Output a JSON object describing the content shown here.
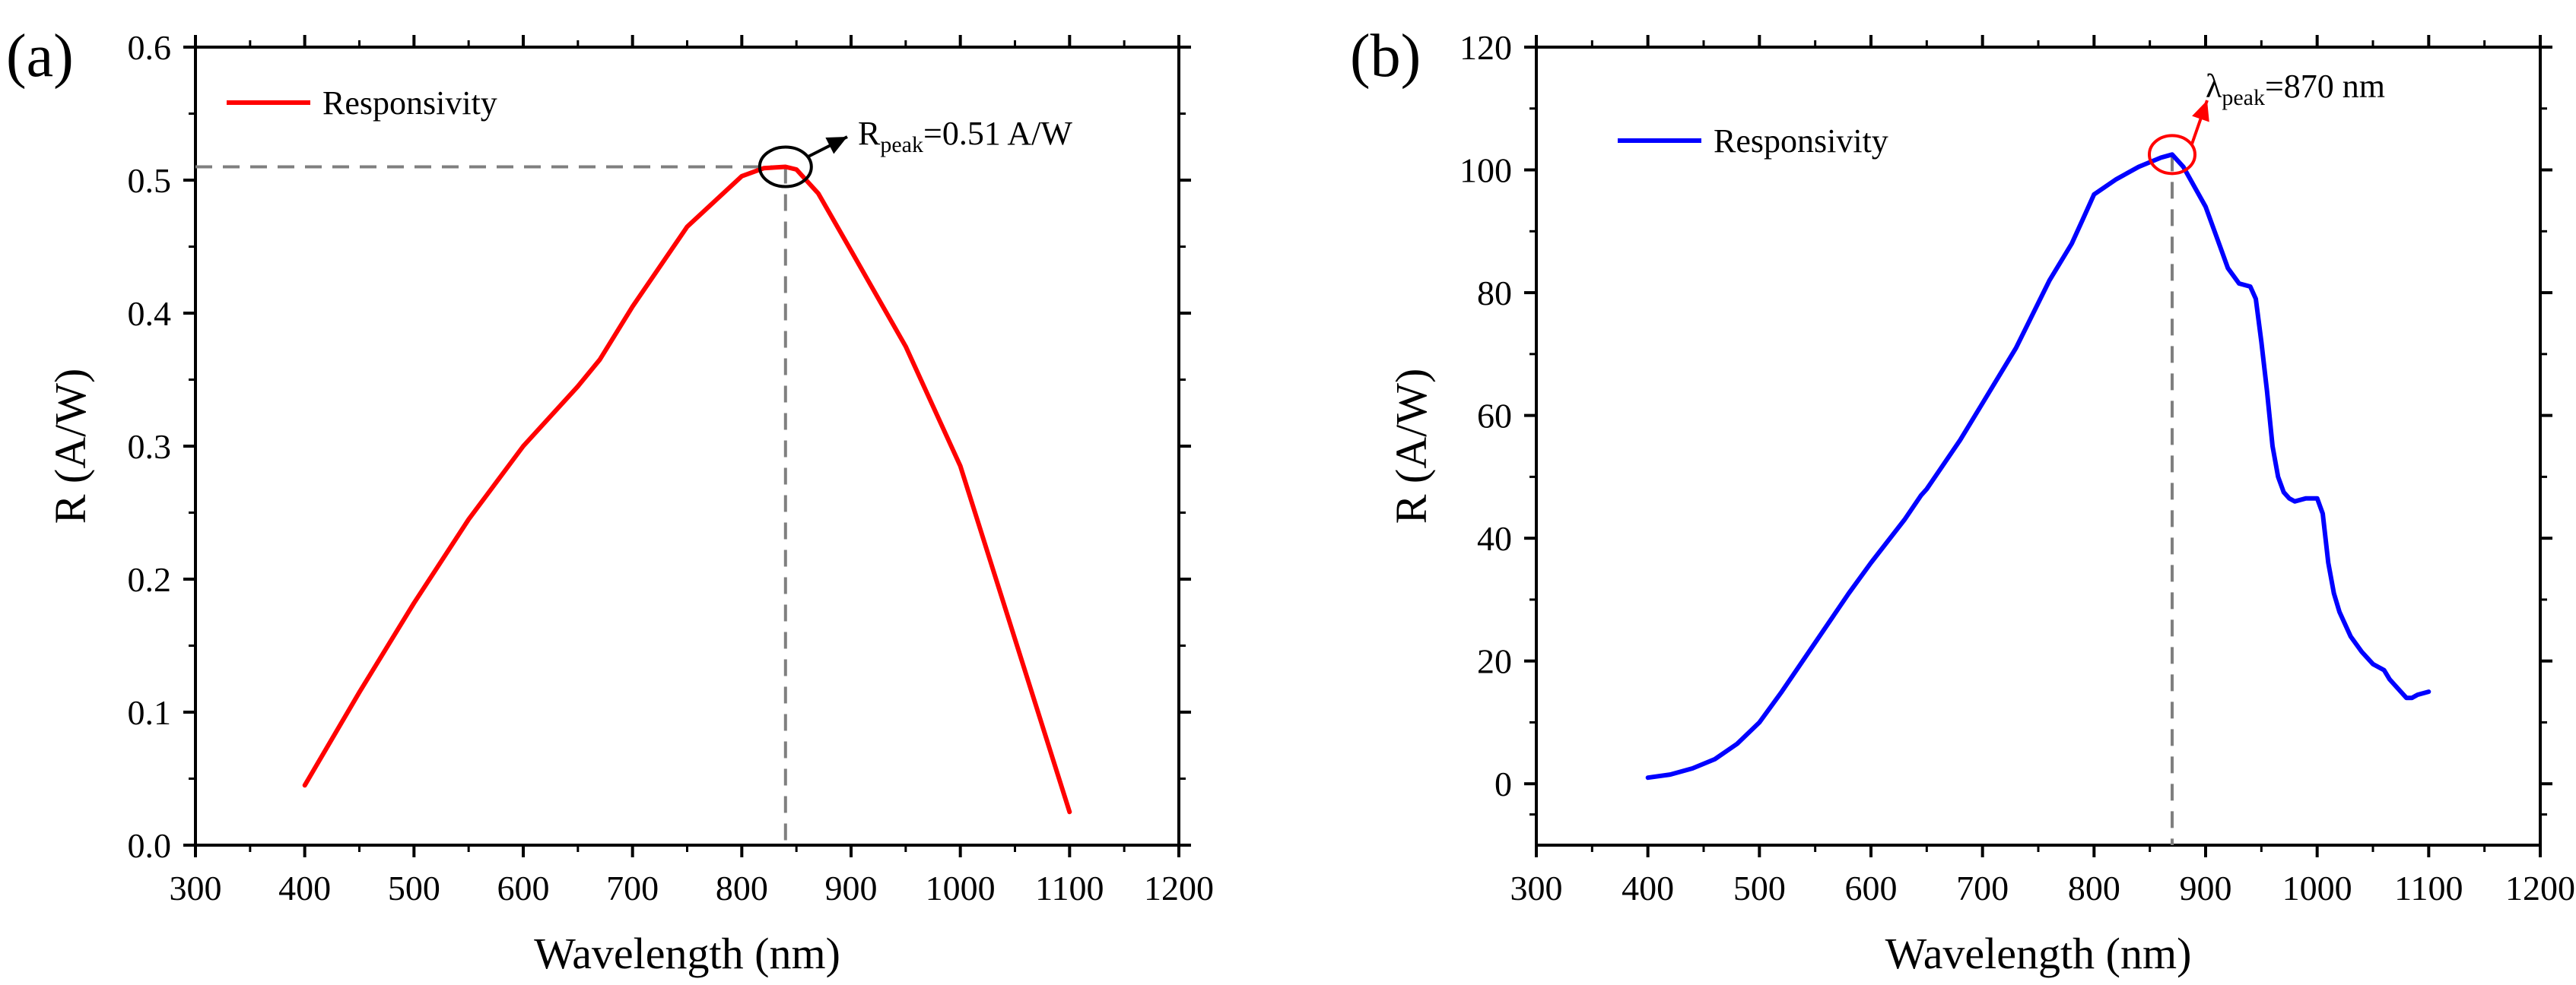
{
  "chart_data": [
    {
      "type": "line",
      "panel_label": "(a)",
      "xlabel": "Wavelength (nm)",
      "ylabel": "R (A/W)",
      "xlim": [
        300,
        1200
      ],
      "ylim": [
        0,
        0.6
      ],
      "xticks": [
        300,
        400,
        500,
        600,
        700,
        800,
        900,
        1000,
        1100,
        1200
      ],
      "xtick_labels": [
        "300",
        "400",
        "500",
        "600",
        "700",
        "800",
        "900",
        "1000",
        "1100",
        "1200"
      ],
      "yticks": [
        0.0,
        0.1,
        0.2,
        0.3,
        0.4,
        0.5,
        0.6
      ],
      "ytick_labels": [
        "0.0",
        "0.1",
        "0.2",
        "0.3",
        "0.4",
        "0.5",
        "0.6"
      ],
      "legend_position": "top-left",
      "series": [
        {
          "name": "Responsivity",
          "color": "#ff0000",
          "x": [
            400,
            450,
            500,
            550,
            600,
            650,
            670,
            700,
            750,
            800,
            820,
            840,
            850,
            870,
            900,
            950,
            1000,
            1050,
            1100
          ],
          "y": [
            0.045,
            0.115,
            0.182,
            0.245,
            0.3,
            0.345,
            0.365,
            0.405,
            0.465,
            0.503,
            0.509,
            0.51,
            0.508,
            0.49,
            0.447,
            0.375,
            0.285,
            0.155,
            0.025
          ]
        }
      ],
      "annotation": {
        "peak_x": 840,
        "peak_y": 0.51,
        "label_main": "R",
        "label_sub": "peak",
        "label_rest": "=0.51 A/W",
        "arrow_color": "#000000"
      }
    },
    {
      "type": "line",
      "panel_label": "(b)",
      "xlabel": "Wavelength (nm)",
      "ylabel": "R (A/W)",
      "xlim": [
        300,
        1200
      ],
      "ylim": [
        -10,
        120
      ],
      "xticks": [
        300,
        400,
        500,
        600,
        700,
        800,
        900,
        1000,
        1100,
        1200
      ],
      "xtick_labels": [
        "300",
        "400",
        "500",
        "600",
        "700",
        "800",
        "900",
        "1000",
        "1100",
        "1200"
      ],
      "yticks": [
        0,
        20,
        40,
        60,
        80,
        100,
        120
      ],
      "ytick_labels": [
        "0",
        "20",
        "40",
        "60",
        "80",
        "100",
        "120"
      ],
      "legend_position": "top-left",
      "series": [
        {
          "name": "Responsivity",
          "color": "#0000ff",
          "x": [
            400,
            420,
            440,
            460,
            480,
            500,
            520,
            550,
            580,
            600,
            630,
            645,
            650,
            680,
            700,
            730,
            760,
            780,
            790,
            800,
            820,
            840,
            860,
            870,
            880,
            900,
            910,
            920,
            930,
            940,
            945,
            950,
            955,
            960,
            965,
            970,
            975,
            980,
            990,
            1000,
            1005,
            1010,
            1015,
            1020,
            1030,
            1040,
            1050,
            1060,
            1065,
            1070,
            1080,
            1085,
            1090,
            1100
          ],
          "y": [
            1,
            1.5,
            2.5,
            4,
            6.5,
            10,
            15,
            23,
            31,
            36,
            43,
            47,
            48,
            56,
            62,
            71,
            82,
            88,
            92,
            96,
            98.5,
            100.5,
            102,
            102.5,
            100.5,
            94,
            89,
            84,
            81.5,
            81,
            79,
            72,
            64,
            55,
            50,
            47.5,
            46.5,
            46,
            46.5,
            46.5,
            44,
            36,
            31,
            28,
            24,
            21.5,
            19.5,
            18.5,
            17,
            16,
            14,
            14,
            14.5,
            15
          ]
        }
      ],
      "annotation": {
        "peak_x": 870,
        "peak_y": 102.5,
        "label_main": "λ",
        "label_sub": "peak",
        "label_rest": "=870 nm",
        "arrow_color": "#ff0000"
      }
    }
  ]
}
